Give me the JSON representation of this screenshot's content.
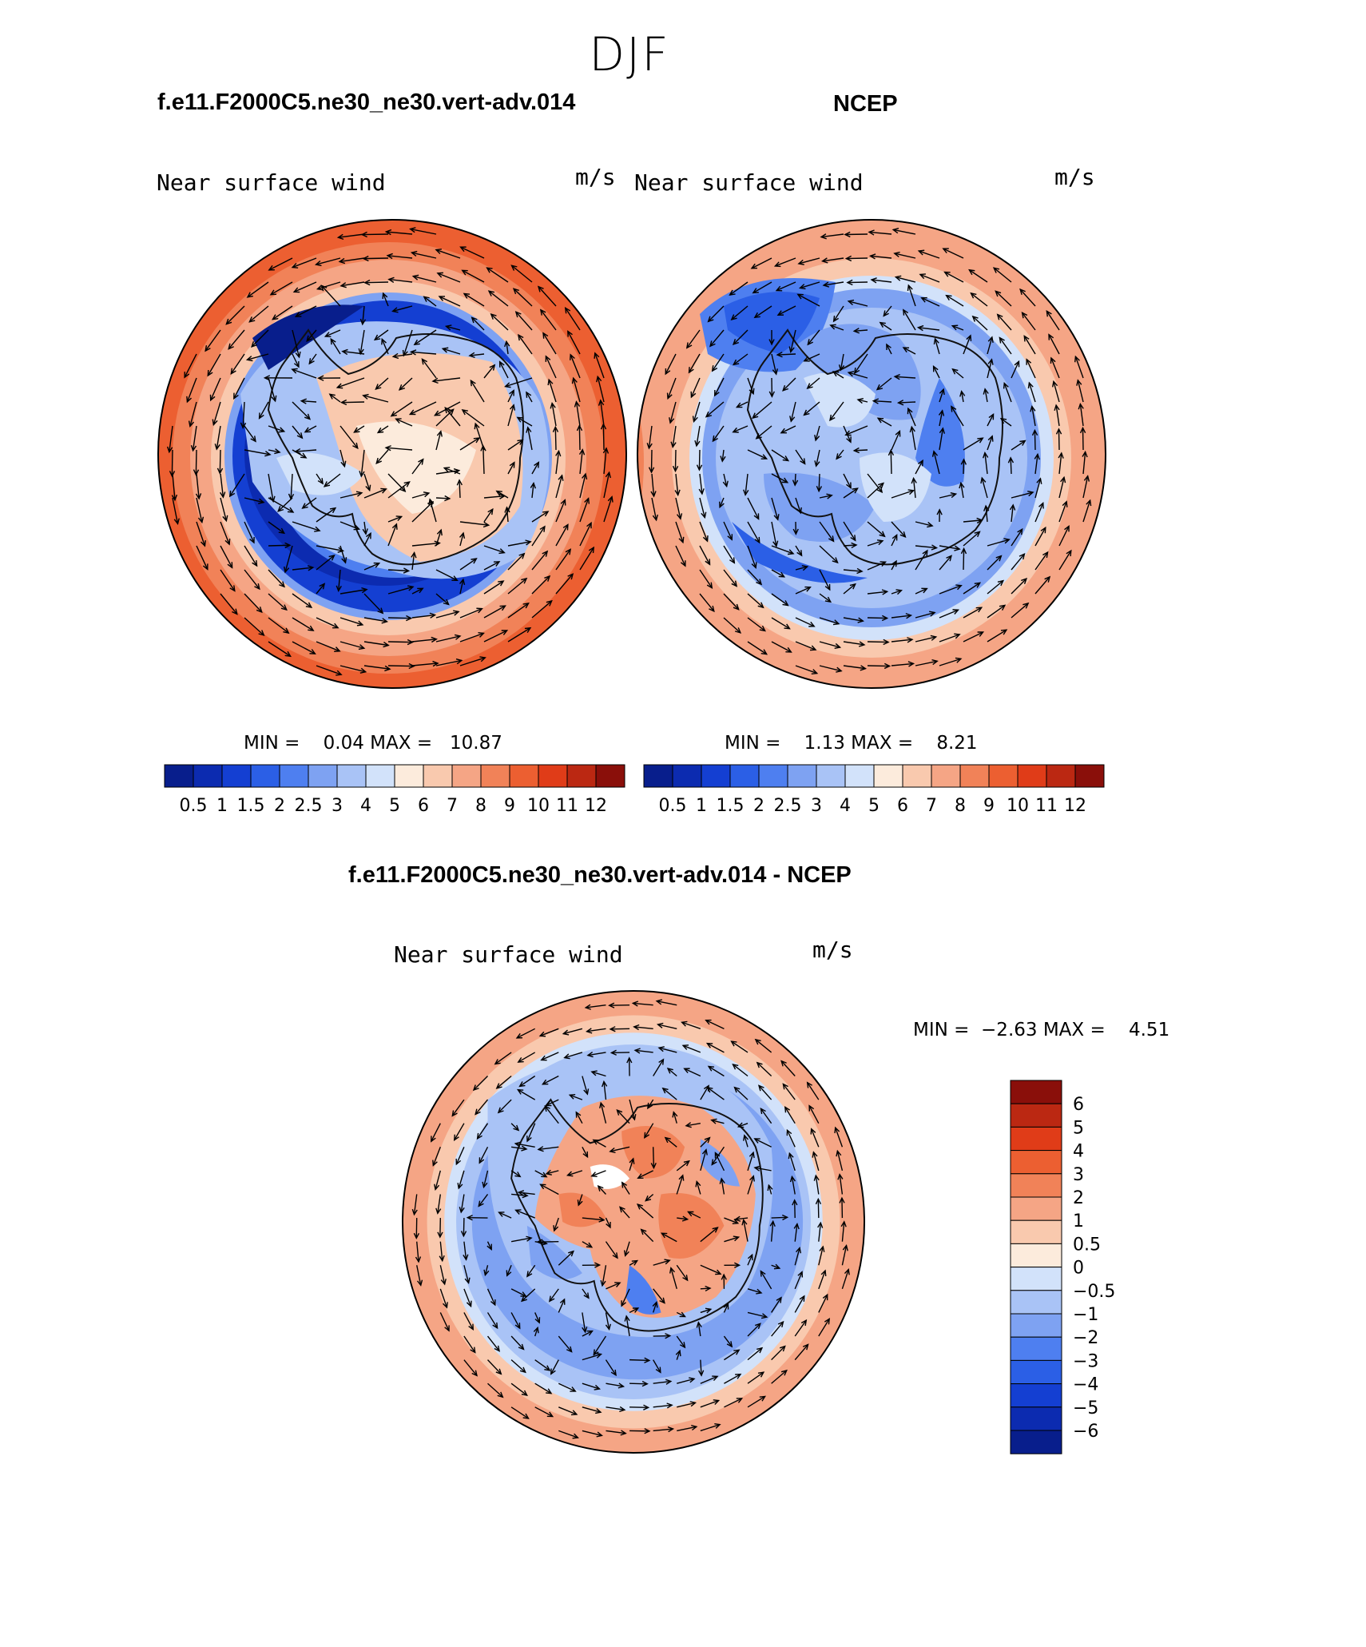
{
  "figure": {
    "season": "DJF",
    "field_label": "Near surface wind",
    "units": "m/s"
  },
  "panels": [
    {
      "id": "model",
      "case_title": "f.e11.F2000C5.ne30_ne30.vert-adv.014",
      "field_label": "Near surface wind",
      "units": "m/s",
      "stats": "MIN =    0.04 MAX =   10.87",
      "min": 0.04,
      "max": 10.87
    },
    {
      "id": "obs",
      "case_title": "NCEP",
      "field_label": "Near surface wind",
      "units": "m/s",
      "stats": "MIN =    1.13 MAX =    8.21",
      "min": 1.13,
      "max": 8.21
    },
    {
      "id": "diff",
      "case_title": "f.e11.F2000C5.ne30_ne30.vert-adv.014 - NCEP",
      "field_label": "Near surface wind",
      "units": "m/s",
      "stats": "MIN =  −2.63 MAX =    4.51",
      "min": -2.63,
      "max": 4.51
    }
  ],
  "colorbar_abs": {
    "labels": [
      "0.5",
      "1",
      "1.5",
      "2",
      "2.5",
      "3",
      "4",
      "5",
      "6",
      "7",
      "8",
      "9",
      "10",
      "11",
      "12"
    ],
    "colors": [
      "#081e8c",
      "#0c2bb0",
      "#143fd2",
      "#2b5fe6",
      "#4e7ff0",
      "#7ea2f2",
      "#a9c3f6",
      "#d2e2fa",
      "#fcebdc",
      "#f9c9ae",
      "#f5a585",
      "#f18258",
      "#ec5f31",
      "#e03c18",
      "#bb2812",
      "#8a0f0a"
    ]
  },
  "colorbar_diff": {
    "labels": [
      "6",
      "5",
      "4",
      "3",
      "2",
      "1",
      "0.5",
      "0",
      "−0.5",
      "−1",
      "−2",
      "−3",
      "−4",
      "−5",
      "−6"
    ],
    "colors": [
      "#8a0f0a",
      "#bb2812",
      "#e03c18",
      "#ec5f31",
      "#f18258",
      "#f5a585",
      "#f9c9ae",
      "#fcebdc",
      "#d2e2fa",
      "#a9c3f6",
      "#7ea2f2",
      "#4e7ff0",
      "#2b5fe6",
      "#143fd2",
      "#0c2bb0",
      "#081e8c"
    ]
  }
}
